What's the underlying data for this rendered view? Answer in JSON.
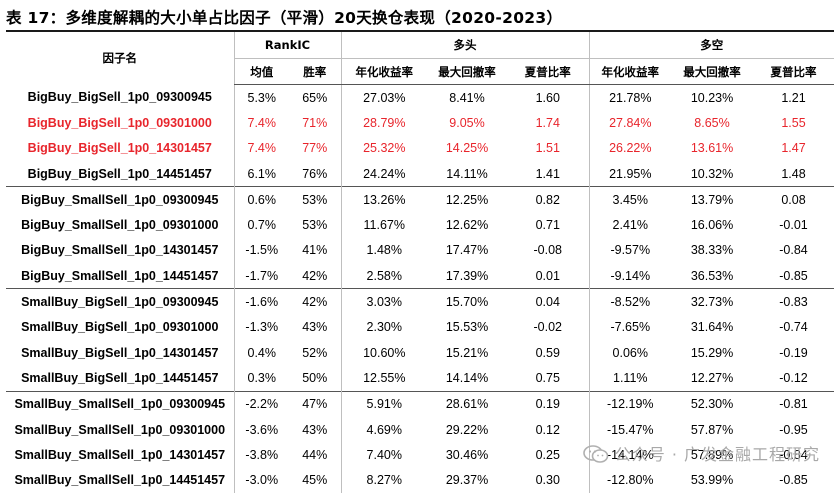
{
  "title": "表 17：多维度解耦的大小单占比因子（平滑）20天换仓表现（2020-2023）",
  "header": {
    "factor_col": "因子名",
    "groups": [
      "RankIC",
      "多头",
      "多空"
    ],
    "subcols": [
      "均值",
      "胜率",
      "年化收益率",
      "最大回撤率",
      "夏普比率",
      "年化收益率",
      "最大回撤率",
      "夏普比率"
    ]
  },
  "rows": [
    {
      "name": "BigBuy_BigSell_1p0_09300945",
      "vals": [
        "5.3%",
        "65%",
        "27.03%",
        "8.41%",
        "1.60",
        "21.78%",
        "10.23%",
        "1.21"
      ],
      "highlight": false
    },
    {
      "name": "BigBuy_BigSell_1p0_09301000",
      "vals": [
        "7.4%",
        "71%",
        "28.79%",
        "9.05%",
        "1.74",
        "27.84%",
        "8.65%",
        "1.55"
      ],
      "highlight": true
    },
    {
      "name": "BigBuy_BigSell_1p0_14301457",
      "vals": [
        "7.4%",
        "77%",
        "25.32%",
        "14.25%",
        "1.51",
        "26.22%",
        "13.61%",
        "1.47"
      ],
      "highlight": true
    },
    {
      "name": "BigBuy_BigSell_1p0_14451457",
      "vals": [
        "6.1%",
        "76%",
        "24.24%",
        "14.11%",
        "1.41",
        "21.95%",
        "10.32%",
        "1.48"
      ],
      "highlight": false
    },
    {
      "name": "BigBuy_SmallSell_1p0_09300945",
      "vals": [
        "0.6%",
        "53%",
        "13.26%",
        "12.25%",
        "0.82",
        "3.45%",
        "13.79%",
        "0.08"
      ],
      "highlight": false
    },
    {
      "name": "BigBuy_SmallSell_1p0_09301000",
      "vals": [
        "0.7%",
        "53%",
        "11.67%",
        "12.62%",
        "0.71",
        "2.41%",
        "16.06%",
        "-0.01"
      ],
      "highlight": false
    },
    {
      "name": "BigBuy_SmallSell_1p0_14301457",
      "vals": [
        "-1.5%",
        "41%",
        "1.48%",
        "17.47%",
        "-0.08",
        "-9.57%",
        "38.33%",
        "-0.84"
      ],
      "highlight": false
    },
    {
      "name": "BigBuy_SmallSell_1p0_14451457",
      "vals": [
        "-1.7%",
        "42%",
        "2.58%",
        "17.39%",
        "0.01",
        "-9.14%",
        "36.53%",
        "-0.85"
      ],
      "highlight": false
    },
    {
      "name": "SmallBuy_BigSell_1p0_09300945",
      "vals": [
        "-1.6%",
        "42%",
        "3.03%",
        "15.70%",
        "0.04",
        "-8.52%",
        "32.73%",
        "-0.83"
      ],
      "highlight": false
    },
    {
      "name": "SmallBuy_BigSell_1p0_09301000",
      "vals": [
        "-1.3%",
        "43%",
        "2.30%",
        "15.53%",
        "-0.02",
        "-7.65%",
        "31.64%",
        "-0.74"
      ],
      "highlight": false
    },
    {
      "name": "SmallBuy_BigSell_1p0_14301457",
      "vals": [
        "0.4%",
        "52%",
        "10.60%",
        "15.21%",
        "0.59",
        "0.06%",
        "15.29%",
        "-0.19"
      ],
      "highlight": false
    },
    {
      "name": "SmallBuy_BigSell_1p0_14451457",
      "vals": [
        "0.3%",
        "50%",
        "12.55%",
        "14.14%",
        "0.75",
        "1.11%",
        "12.27%",
        "-0.12"
      ],
      "highlight": false
    },
    {
      "name": "SmallBuy_SmallSell_1p0_09300945",
      "vals": [
        "-2.2%",
        "47%",
        "5.91%",
        "28.61%",
        "0.19",
        "-12.19%",
        "52.30%",
        "-0.81"
      ],
      "highlight": false
    },
    {
      "name": "SmallBuy_SmallSell_1p0_09301000",
      "vals": [
        "-3.6%",
        "43%",
        "4.69%",
        "29.22%",
        "0.12",
        "-15.47%",
        "57.87%",
        "-0.95"
      ],
      "highlight": false
    },
    {
      "name": "SmallBuy_SmallSell_1p0_14301457",
      "vals": [
        "-3.8%",
        "44%",
        "7.40%",
        "30.46%",
        "0.25",
        "-14.14%",
        "57.89%",
        "-0.84"
      ],
      "highlight": false
    },
    {
      "name": "SmallBuy_SmallSell_1p0_14451457",
      "vals": [
        "-3.0%",
        "45%",
        "8.27%",
        "29.37%",
        "0.30",
        "-12.80%",
        "53.99%",
        "-0.85"
      ],
      "highlight": false
    }
  ],
  "group_starts": [
    4,
    8,
    12
  ],
  "watermark": {
    "text": "公众号 · 广发金融工程研究",
    "icon": "wechat-icon"
  },
  "colors": {
    "highlight": "#e8252c",
    "watermark": "#a8a8a8"
  }
}
